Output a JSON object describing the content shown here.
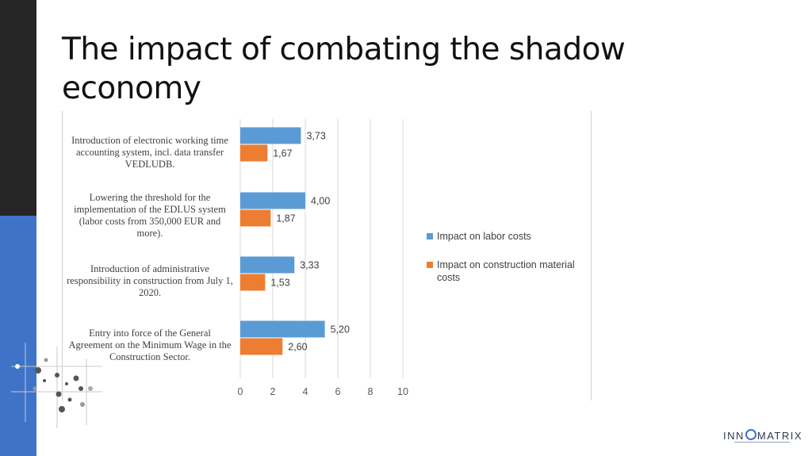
{
  "slide": {
    "title": "The impact of combating the shadow economy",
    "logo_text_left": "INN",
    "logo_text_right": "MATRIX"
  },
  "colors": {
    "sidebar_dark": "#262626",
    "sidebar_blue": "#3f73c8",
    "labor": "#5b9bd5",
    "material": "#ed7d31",
    "grid": "#d9d9d9"
  },
  "chart_data": {
    "type": "bar",
    "orientation": "horizontal",
    "categories": [
      "Introduction of electronic working time accounting system, incl. data transfer VEDLUDB.",
      "Lowering the threshold for the implementation of the EDLUS system (labor costs from 350,000 EUR and more).",
      "Introduction of administrative responsibility in construction from July 1, 2020.",
      "Entry into force of the General Agreement on the Minimum Wage in the Construction Sector."
    ],
    "series": [
      {
        "name": "Impact on labor costs",
        "values": [
          3.73,
          4.0,
          3.33,
          5.2
        ],
        "labels": [
          "3,73",
          "4,00",
          "3,33",
          "5,20"
        ]
      },
      {
        "name": "Impact on construction material costs",
        "values": [
          1.67,
          1.87,
          1.53,
          2.6
        ],
        "labels": [
          "1,67",
          "1,87",
          "1,53",
          "2,60"
        ]
      }
    ],
    "xlim": [
      0,
      10
    ],
    "xticks": [
      "0",
      "2",
      "4",
      "6",
      "8",
      "10"
    ],
    "grid": true,
    "legend_position": "right"
  }
}
